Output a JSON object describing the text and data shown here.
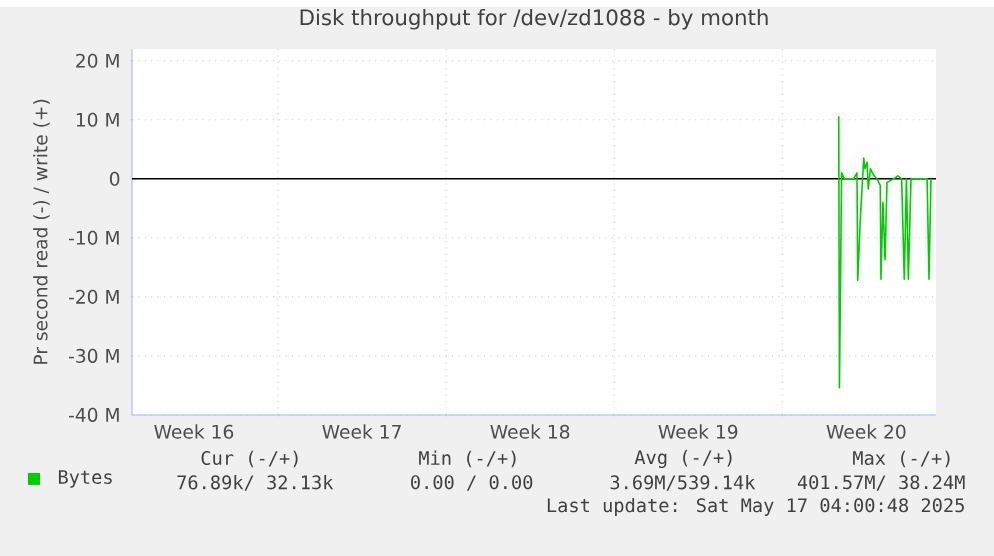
{
  "chart_data": {
    "type": "line",
    "title": "Disk throughput for /dev/zd1088 - by month",
    "ylabel": "Pr second read (-) / write (+)",
    "xlim": [
      "2025-04-14T22:05",
      "2025-05-18T09:36"
    ],
    "ylim": [
      -40,
      22
    ],
    "xticks": [
      {
        "value": "2025-04-17T12:00",
        "label": "Week 16"
      },
      {
        "value": "2025-04-21",
        "label": null
      },
      {
        "value": "2025-04-24T12:00",
        "label": "Week 17"
      },
      {
        "value": "2025-04-28",
        "label": null
      },
      {
        "value": "2025-05-01T12:00",
        "label": "Week 18"
      },
      {
        "value": "2025-05-05",
        "label": null
      },
      {
        "value": "2025-05-08T12:00",
        "label": "Week 19"
      },
      {
        "value": "2025-05-12",
        "label": null
      },
      {
        "value": "2025-05-15T12:00",
        "label": "Week 20"
      }
    ],
    "yticks": [
      {
        "value": -40,
        "label": "-40 M"
      },
      {
        "value": -30,
        "label": "-30 M"
      },
      {
        "value": -20,
        "label": "-20 M"
      },
      {
        "value": -10,
        "label": "-10 M"
      },
      {
        "value": 0,
        "label": "0"
      },
      {
        "value": 10,
        "label": "10 M"
      },
      {
        "value": 20,
        "label": "20 M"
      }
    ],
    "grid": true,
    "legend": "bottom",
    "marker": "none",
    "line_style": "solid",
    "ref_lines": [
      {
        "axis": "y",
        "value": 0,
        "color": "#000000"
      }
    ],
    "series": [
      {
        "name": "Bytes",
        "color": "#00cc00",
        "x": [
          "2025-05-14T08:24",
          "2025-05-14T09:07",
          "2025-05-14T11:17",
          "2025-05-14T13:55",
          "2025-05-14T23:17",
          "2025-05-15T02:38",
          "2025-05-15T03:22",
          "2025-05-15T06:00",
          "2025-05-15T07:26",
          "2025-05-15T09:22",
          "2025-05-15T10:34",
          "2025-05-15T12:43",
          "2025-05-15T13:55",
          "2025-05-15T16:05",
          "2025-05-15T19:26",
          "2025-05-15T22:34",
          "2025-05-16T01:55",
          "2025-05-16T02:38",
          "2025-05-16T04:34",
          "2025-05-16T06:43",
          "2025-05-16T08:38",
          "2025-05-16T15:22",
          "2025-05-16T19:26",
          "2025-05-16T23:17",
          "2025-05-17T01:55",
          "2025-05-17T04:05",
          "2025-05-17T06:00",
          "2025-05-17T08:38",
          "2025-05-18T00:43",
          "2025-05-18T02:38",
          "2025-05-18T04:34"
        ],
        "values": [
          10.6,
          -35.4,
          1,
          0,
          0,
          1,
          -17.2,
          -6.8,
          -2.4,
          3.5,
          1.7,
          2.8,
          -1.7,
          1.7,
          0.6,
          0,
          -1.1,
          -17,
          -4,
          -13.7,
          -0.6,
          0,
          0.5,
          0,
          -17,
          0,
          -17,
          0,
          0,
          -17,
          0
        ]
      }
    ],
    "annotations": [
      "Cur (-/+)",
      "Min (-/+)",
      "Avg (-/+)",
      "Max (-/+)",
      "76.89k/ 32.13k",
      "0.00 /  0.00",
      "3.69M/539.14k",
      "401.57M/ 38.24M",
      "Last update: Sat May 17 04:00:48 2025"
    ]
  }
}
